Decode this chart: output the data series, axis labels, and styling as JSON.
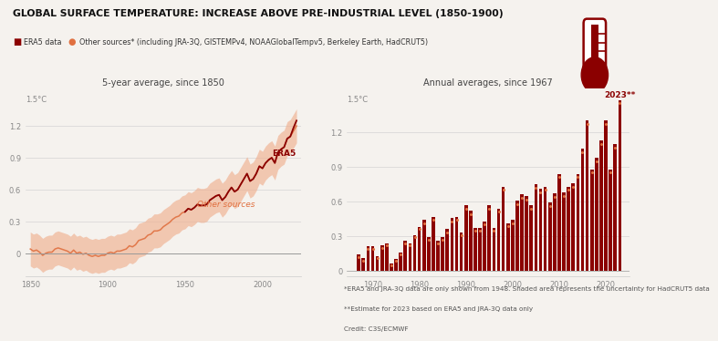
{
  "title": "GLOBAL SURFACE TEMPERATURE: INCREASE ABOVE PRE-INDUSTRIAL LEVEL (1850-1900)",
  "legend_era5": "ERA5 data",
  "legend_other": "Other sources* (including JRA-3Q, GISTEMPv4, NOAAGlobalTempv5, Berkeley Earth, HadCRUT5)",
  "left_title": "5-year average, since 1850",
  "right_title": "Annual averages, since 1967",
  "footnote1": "*ERA5 and JRA-3Q data are only shown from 1948. Shaded area represents the uncertainty for HadCRUT5 data",
  "footnote2": "**Estimate for 2023 based on ERA5 and JRA-3Q data only",
  "footnote3": "Credit: C3S/ECMWF",
  "color_era5": "#8B0000",
  "color_other_line": "#E07040",
  "color_other_fill": "#F0B090",
  "bg_color": "#F5F2EE",
  "annotation_2023": "2023**",
  "annotation_era5": "ERA5",
  "annotation_other": "Other sources",
  "left_other_years": [
    1850,
    1852,
    1854,
    1856,
    1858,
    1860,
    1862,
    1864,
    1866,
    1868,
    1870,
    1872,
    1874,
    1876,
    1878,
    1880,
    1882,
    1884,
    1886,
    1888,
    1890,
    1892,
    1894,
    1896,
    1898,
    1900,
    1902,
    1904,
    1906,
    1908,
    1910,
    1912,
    1914,
    1916,
    1918,
    1920,
    1922,
    1924,
    1926,
    1928,
    1930,
    1932,
    1934,
    1936,
    1938,
    1940,
    1942,
    1944,
    1946,
    1948,
    1950,
    1952,
    1954,
    1956,
    1958,
    1960,
    1962,
    1964,
    1966,
    1968,
    1970,
    1972,
    1974,
    1976,
    1978,
    1980,
    1982,
    1984,
    1986,
    1988,
    1990,
    1992,
    1994,
    1996,
    1998,
    2000,
    2002,
    2004,
    2006,
    2008,
    2010,
    2012,
    2014,
    2016,
    2018,
    2020,
    2022
  ],
  "left_other_mean": [
    0.04,
    0.02,
    0.03,
    0.01,
    -0.02,
    0.0,
    0.01,
    0.01,
    0.04,
    0.05,
    0.04,
    0.03,
    0.02,
    0.0,
    0.03,
    0.0,
    0.01,
    -0.01,
    0.0,
    -0.02,
    -0.03,
    -0.02,
    -0.03,
    -0.02,
    -0.02,
    0.0,
    0.01,
    0.0,
    0.02,
    0.02,
    0.03,
    0.04,
    0.07,
    0.06,
    0.08,
    0.12,
    0.13,
    0.14,
    0.17,
    0.18,
    0.21,
    0.21,
    0.22,
    0.25,
    0.27,
    0.29,
    0.32,
    0.34,
    0.35,
    0.38,
    0.39,
    0.42,
    0.41,
    0.43,
    0.46,
    0.45,
    0.45,
    0.46,
    0.5,
    0.52,
    0.54,
    0.55,
    0.5,
    0.53,
    0.58,
    0.62,
    0.58,
    0.6,
    0.65,
    0.7,
    0.75,
    0.68,
    0.7,
    0.75,
    0.82,
    0.8,
    0.85,
    0.88,
    0.9,
    0.85,
    0.95,
    0.98,
    1.0,
    1.08,
    1.1,
    1.15,
    1.2
  ],
  "left_other_low": [
    -0.12,
    -0.14,
    -0.13,
    -0.15,
    -0.18,
    -0.16,
    -0.15,
    -0.15,
    -0.12,
    -0.11,
    -0.12,
    -0.13,
    -0.14,
    -0.16,
    -0.13,
    -0.16,
    -0.15,
    -0.17,
    -0.16,
    -0.18,
    -0.19,
    -0.18,
    -0.19,
    -0.18,
    -0.18,
    -0.16,
    -0.15,
    -0.16,
    -0.14,
    -0.14,
    -0.13,
    -0.12,
    -0.09,
    -0.1,
    -0.08,
    -0.04,
    -0.03,
    -0.02,
    0.01,
    0.02,
    0.05,
    0.05,
    0.06,
    0.09,
    0.11,
    0.13,
    0.16,
    0.18,
    0.19,
    0.22,
    0.23,
    0.26,
    0.25,
    0.27,
    0.3,
    0.29,
    0.29,
    0.3,
    0.34,
    0.36,
    0.38,
    0.39,
    0.34,
    0.37,
    0.42,
    0.46,
    0.42,
    0.44,
    0.49,
    0.54,
    0.59,
    0.52,
    0.54,
    0.59,
    0.66,
    0.64,
    0.69,
    0.72,
    0.74,
    0.69,
    0.79,
    0.82,
    0.84,
    0.92,
    0.94,
    0.99,
    1.04
  ],
  "left_other_high": [
    0.2,
    0.18,
    0.19,
    0.17,
    0.14,
    0.16,
    0.17,
    0.17,
    0.2,
    0.21,
    0.2,
    0.19,
    0.18,
    0.16,
    0.19,
    0.16,
    0.17,
    0.15,
    0.16,
    0.14,
    0.13,
    0.14,
    0.13,
    0.14,
    0.14,
    0.16,
    0.17,
    0.16,
    0.18,
    0.18,
    0.19,
    0.2,
    0.23,
    0.22,
    0.24,
    0.28,
    0.29,
    0.3,
    0.33,
    0.34,
    0.37,
    0.37,
    0.38,
    0.41,
    0.43,
    0.45,
    0.48,
    0.5,
    0.51,
    0.54,
    0.55,
    0.58,
    0.57,
    0.59,
    0.62,
    0.61,
    0.61,
    0.62,
    0.66,
    0.68,
    0.7,
    0.71,
    0.66,
    0.69,
    0.74,
    0.78,
    0.74,
    0.76,
    0.81,
    0.86,
    0.91,
    0.84,
    0.86,
    0.91,
    0.98,
    0.96,
    1.01,
    1.04,
    1.06,
    1.01,
    1.11,
    1.14,
    1.16,
    1.24,
    1.26,
    1.31,
    1.36
  ],
  "left_era5_years": [
    1950,
    1952,
    1954,
    1956,
    1958,
    1960,
    1962,
    1964,
    1966,
    1968,
    1970,
    1972,
    1974,
    1976,
    1978,
    1980,
    1982,
    1984,
    1986,
    1988,
    1990,
    1992,
    1994,
    1996,
    1998,
    2000,
    2002,
    2004,
    2006,
    2008,
    2010,
    2012,
    2014,
    2016,
    2018,
    2020,
    2022
  ],
  "left_era5_vals": [
    0.39,
    0.42,
    0.41,
    0.43,
    0.46,
    0.45,
    0.45,
    0.46,
    0.5,
    0.52,
    0.54,
    0.55,
    0.5,
    0.53,
    0.58,
    0.62,
    0.58,
    0.6,
    0.65,
    0.7,
    0.75,
    0.68,
    0.7,
    0.75,
    0.82,
    0.8,
    0.85,
    0.88,
    0.9,
    0.85,
    0.95,
    0.98,
    1.0,
    1.08,
    1.1,
    1.18,
    1.25
  ],
  "right_years": [
    1967,
    1968,
    1969,
    1970,
    1971,
    1972,
    1973,
    1974,
    1975,
    1976,
    1977,
    1978,
    1979,
    1980,
    1981,
    1982,
    1983,
    1984,
    1985,
    1986,
    1987,
    1988,
    1989,
    1990,
    1991,
    1992,
    1993,
    1994,
    1995,
    1996,
    1997,
    1998,
    1999,
    2000,
    2001,
    2002,
    2003,
    2004,
    2005,
    2006,
    2007,
    2008,
    2009,
    2010,
    2011,
    2012,
    2013,
    2014,
    2015,
    2016,
    2017,
    2018,
    2019,
    2020,
    2021,
    2022,
    2023
  ],
  "right_era5": [
    0.14,
    0.11,
    0.21,
    0.21,
    0.13,
    0.22,
    0.24,
    0.06,
    0.1,
    0.16,
    0.26,
    0.24,
    0.31,
    0.38,
    0.44,
    0.29,
    0.47,
    0.26,
    0.29,
    0.36,
    0.46,
    0.47,
    0.33,
    0.57,
    0.52,
    0.37,
    0.37,
    0.43,
    0.57,
    0.37,
    0.54,
    0.73,
    0.41,
    0.44,
    0.61,
    0.66,
    0.65,
    0.57,
    0.75,
    0.71,
    0.73,
    0.59,
    0.67,
    0.84,
    0.68,
    0.73,
    0.76,
    0.84,
    1.06,
    1.3,
    0.88,
    0.98,
    1.13,
    1.3,
    0.88,
    1.1,
    1.48
  ],
  "right_other": [
    0.12,
    0.09,
    0.19,
    0.19,
    0.11,
    0.2,
    0.22,
    0.05,
    0.09,
    0.14,
    0.24,
    0.22,
    0.29,
    0.36,
    0.41,
    0.27,
    0.44,
    0.24,
    0.27,
    0.33,
    0.43,
    0.44,
    0.31,
    0.54,
    0.49,
    0.35,
    0.35,
    0.4,
    0.54,
    0.35,
    0.51,
    0.7,
    0.39,
    0.41,
    0.58,
    0.63,
    0.62,
    0.54,
    0.72,
    0.68,
    0.7,
    0.56,
    0.64,
    0.81,
    0.65,
    0.7,
    0.73,
    0.81,
    1.03,
    1.27,
    0.85,
    0.95,
    1.1,
    1.27,
    0.85,
    1.07,
    1.45
  ]
}
